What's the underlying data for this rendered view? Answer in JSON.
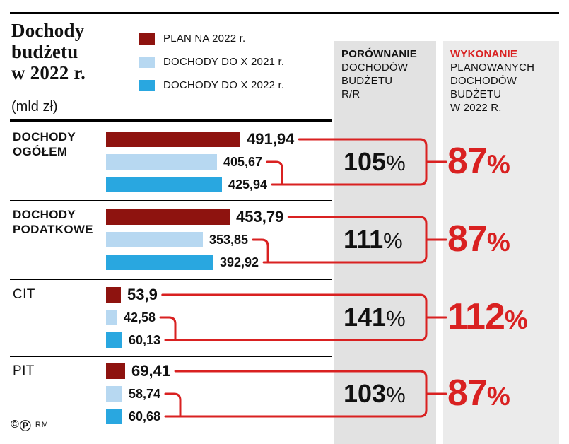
{
  "title": {
    "lines": [
      "Dochody",
      "budżetu",
      "w 2022 r."
    ],
    "unit": "(mld zł)"
  },
  "legend": {
    "items": [
      {
        "label": "PLAN NA 2022 r.",
        "color": "#8e130f"
      },
      {
        "label": "DOCHODY DO X 2021 r.",
        "color": "#b7d8f1"
      },
      {
        "label": "DOCHODY DO X 2022 r.",
        "color": "#29a7e0"
      }
    ]
  },
  "columns": {
    "comparison": {
      "title_bold": "PORÓWNANIE",
      "lines": [
        "DOCHODÓW",
        "BUDŻETU",
        "R/R"
      ]
    },
    "execution": {
      "title_bold": "WYKONANIE",
      "lines": [
        "PLANOWANYCH",
        "DOCHODÓW",
        "BUDŻETU",
        "W 2022 R."
      ]
    }
  },
  "footer": {
    "copyright_symbol": "©",
    "p_symbol": "Ⓟ",
    "credit": "RM"
  },
  "colors": {
    "plan": "#8e130f",
    "year2021": "#b7d8f1",
    "year2022": "#29a7e0",
    "accent_red": "#d92121",
    "col1_bg": "#e2e2e2",
    "col2_bg": "#ebebeb"
  },
  "chart_data": {
    "type": "bar",
    "title": "Dochody budżetu w 2022 r.",
    "unit": "mld zł",
    "xlim": [
      0,
      500
    ],
    "series_names": [
      "PLAN NA 2022 r.",
      "DOCHODY DO X 2021 r.",
      "DOCHODY DO X 2022 r."
    ],
    "groups": [
      {
        "label": [
          "DOCHODY",
          "OGÓŁEM"
        ],
        "label_bold": true,
        "values": [
          491.94,
          405.67,
          425.94
        ],
        "display": [
          "491,94",
          "405,67",
          "425,94"
        ],
        "yoy": "105%",
        "execution": "87%"
      },
      {
        "label": [
          "DOCHODY",
          "PODATKOWE"
        ],
        "label_bold": true,
        "values": [
          453.79,
          353.85,
          392.92
        ],
        "display": [
          "453,79",
          "353,85",
          "392,92"
        ],
        "yoy": "111%",
        "execution": "87%"
      },
      {
        "label": [
          "CIT"
        ],
        "label_bold": false,
        "values": [
          53.9,
          42.58,
          60.13
        ],
        "display": [
          "53,9",
          "42,58",
          "60,13"
        ],
        "yoy": "141%",
        "execution": "112%"
      },
      {
        "label": [
          "PIT"
        ],
        "label_bold": false,
        "values": [
          69.41,
          58.74,
          60.68
        ],
        "display": [
          "69,41",
          "58,74",
          "60,68"
        ],
        "yoy": "103%",
        "execution": "87%"
      }
    ]
  }
}
